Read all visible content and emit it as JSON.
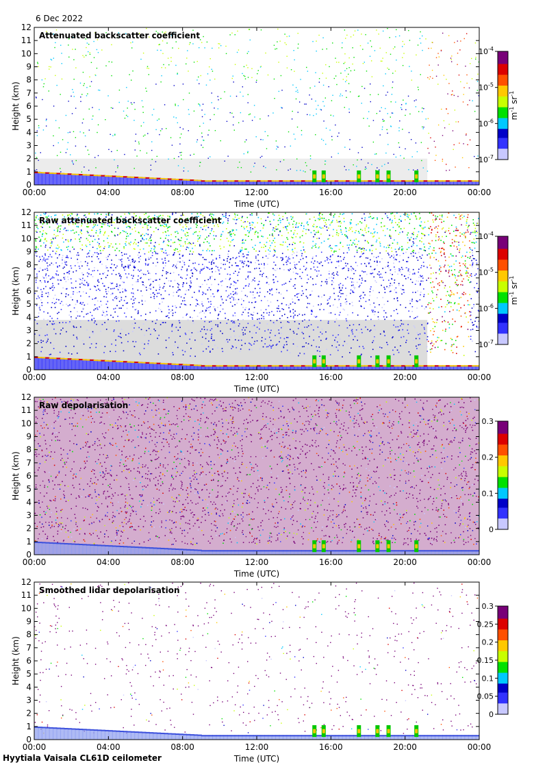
{
  "date": "6 Dec 2022",
  "footer": "Hyytiala Vaisala CL61D ceilometer",
  "chart_data": [
    {
      "type": "heatmap",
      "title": "Attenuated backscatter coefficient",
      "xlabel": "Time (UTC)",
      "ylabel": "Height (km)",
      "x_ticks": [
        "00:00",
        "04:00",
        "08:00",
        "12:00",
        "16:00",
        "20:00",
        "00:00"
      ],
      "xlim": [
        0,
        24
      ],
      "ylim": [
        0,
        12
      ],
      "y_ticks": [
        0,
        1,
        2,
        3,
        4,
        5,
        6,
        7,
        8,
        9,
        10,
        11,
        12
      ],
      "colorbar": {
        "scale": "log",
        "range": [
          1e-07,
          0.0001
        ],
        "ticks": [
          {
            "base": "10",
            "exp": "-4"
          },
          {
            "base": "10",
            "exp": "-5"
          },
          {
            "base": "10",
            "exp": "-6"
          },
          {
            "base": "10",
            "exp": "-7"
          }
        ],
        "units": "m-1 sr-1"
      },
      "units_parts": {
        "base1": "m",
        "exp1": "-1",
        "base2": " sr",
        "exp2": "-1"
      }
    },
    {
      "type": "heatmap",
      "title": "Raw attenuated backscatter coefficient",
      "xlabel": "Time (UTC)",
      "ylabel": "Height (km)",
      "x_ticks": [
        "00:00",
        "04:00",
        "08:00",
        "12:00",
        "16:00",
        "20:00",
        "00:00"
      ],
      "xlim": [
        0,
        24
      ],
      "ylim": [
        0,
        12
      ],
      "y_ticks": [
        0,
        1,
        2,
        3,
        4,
        5,
        6,
        7,
        8,
        9,
        10,
        11,
        12
      ],
      "colorbar": {
        "scale": "log",
        "range": [
          1e-07,
          0.0001
        ],
        "ticks": [
          {
            "base": "10",
            "exp": "-4"
          },
          {
            "base": "10",
            "exp": "-5"
          },
          {
            "base": "10",
            "exp": "-6"
          },
          {
            "base": "10",
            "exp": "-7"
          }
        ],
        "units": "m-1 sr-1"
      },
      "units_parts": {
        "base1": "m",
        "exp1": "-1",
        "base2": " sr",
        "exp2": "-1"
      }
    },
    {
      "type": "heatmap",
      "title": "Raw depolarisation",
      "xlabel": "Time (UTC)",
      "ylabel": "Height (km)",
      "x_ticks": [
        "00:00",
        "04:00",
        "08:00",
        "12:00",
        "16:00",
        "20:00",
        "00:00"
      ],
      "xlim": [
        0,
        24
      ],
      "ylim": [
        0,
        12
      ],
      "y_ticks": [
        0,
        1,
        2,
        3,
        4,
        5,
        6,
        7,
        8,
        9,
        10,
        11,
        12
      ],
      "colorbar": {
        "scale": "linear",
        "range": [
          0,
          0.3
        ],
        "ticks": [
          "0.3",
          "0.2",
          "0.1",
          "0"
        ]
      }
    },
    {
      "type": "heatmap",
      "title": "Smoothed lidar depolarisation",
      "xlabel": "Time (UTC)",
      "ylabel": "Height (km)",
      "x_ticks": [
        "00:00",
        "04:00",
        "08:00",
        "12:00",
        "16:00",
        "20:00",
        "00:00"
      ],
      "xlim": [
        0,
        24
      ],
      "ylim": [
        0,
        12
      ],
      "y_ticks": [
        0,
        1,
        2,
        3,
        4,
        5,
        6,
        7,
        8,
        9,
        10,
        11,
        12
      ],
      "colorbar": {
        "scale": "linear",
        "range": [
          0,
          0.3
        ],
        "ticks": [
          "0.3",
          "0.25",
          "0.2",
          "0.15",
          "0.1",
          "0.05",
          "0"
        ]
      }
    }
  ]
}
